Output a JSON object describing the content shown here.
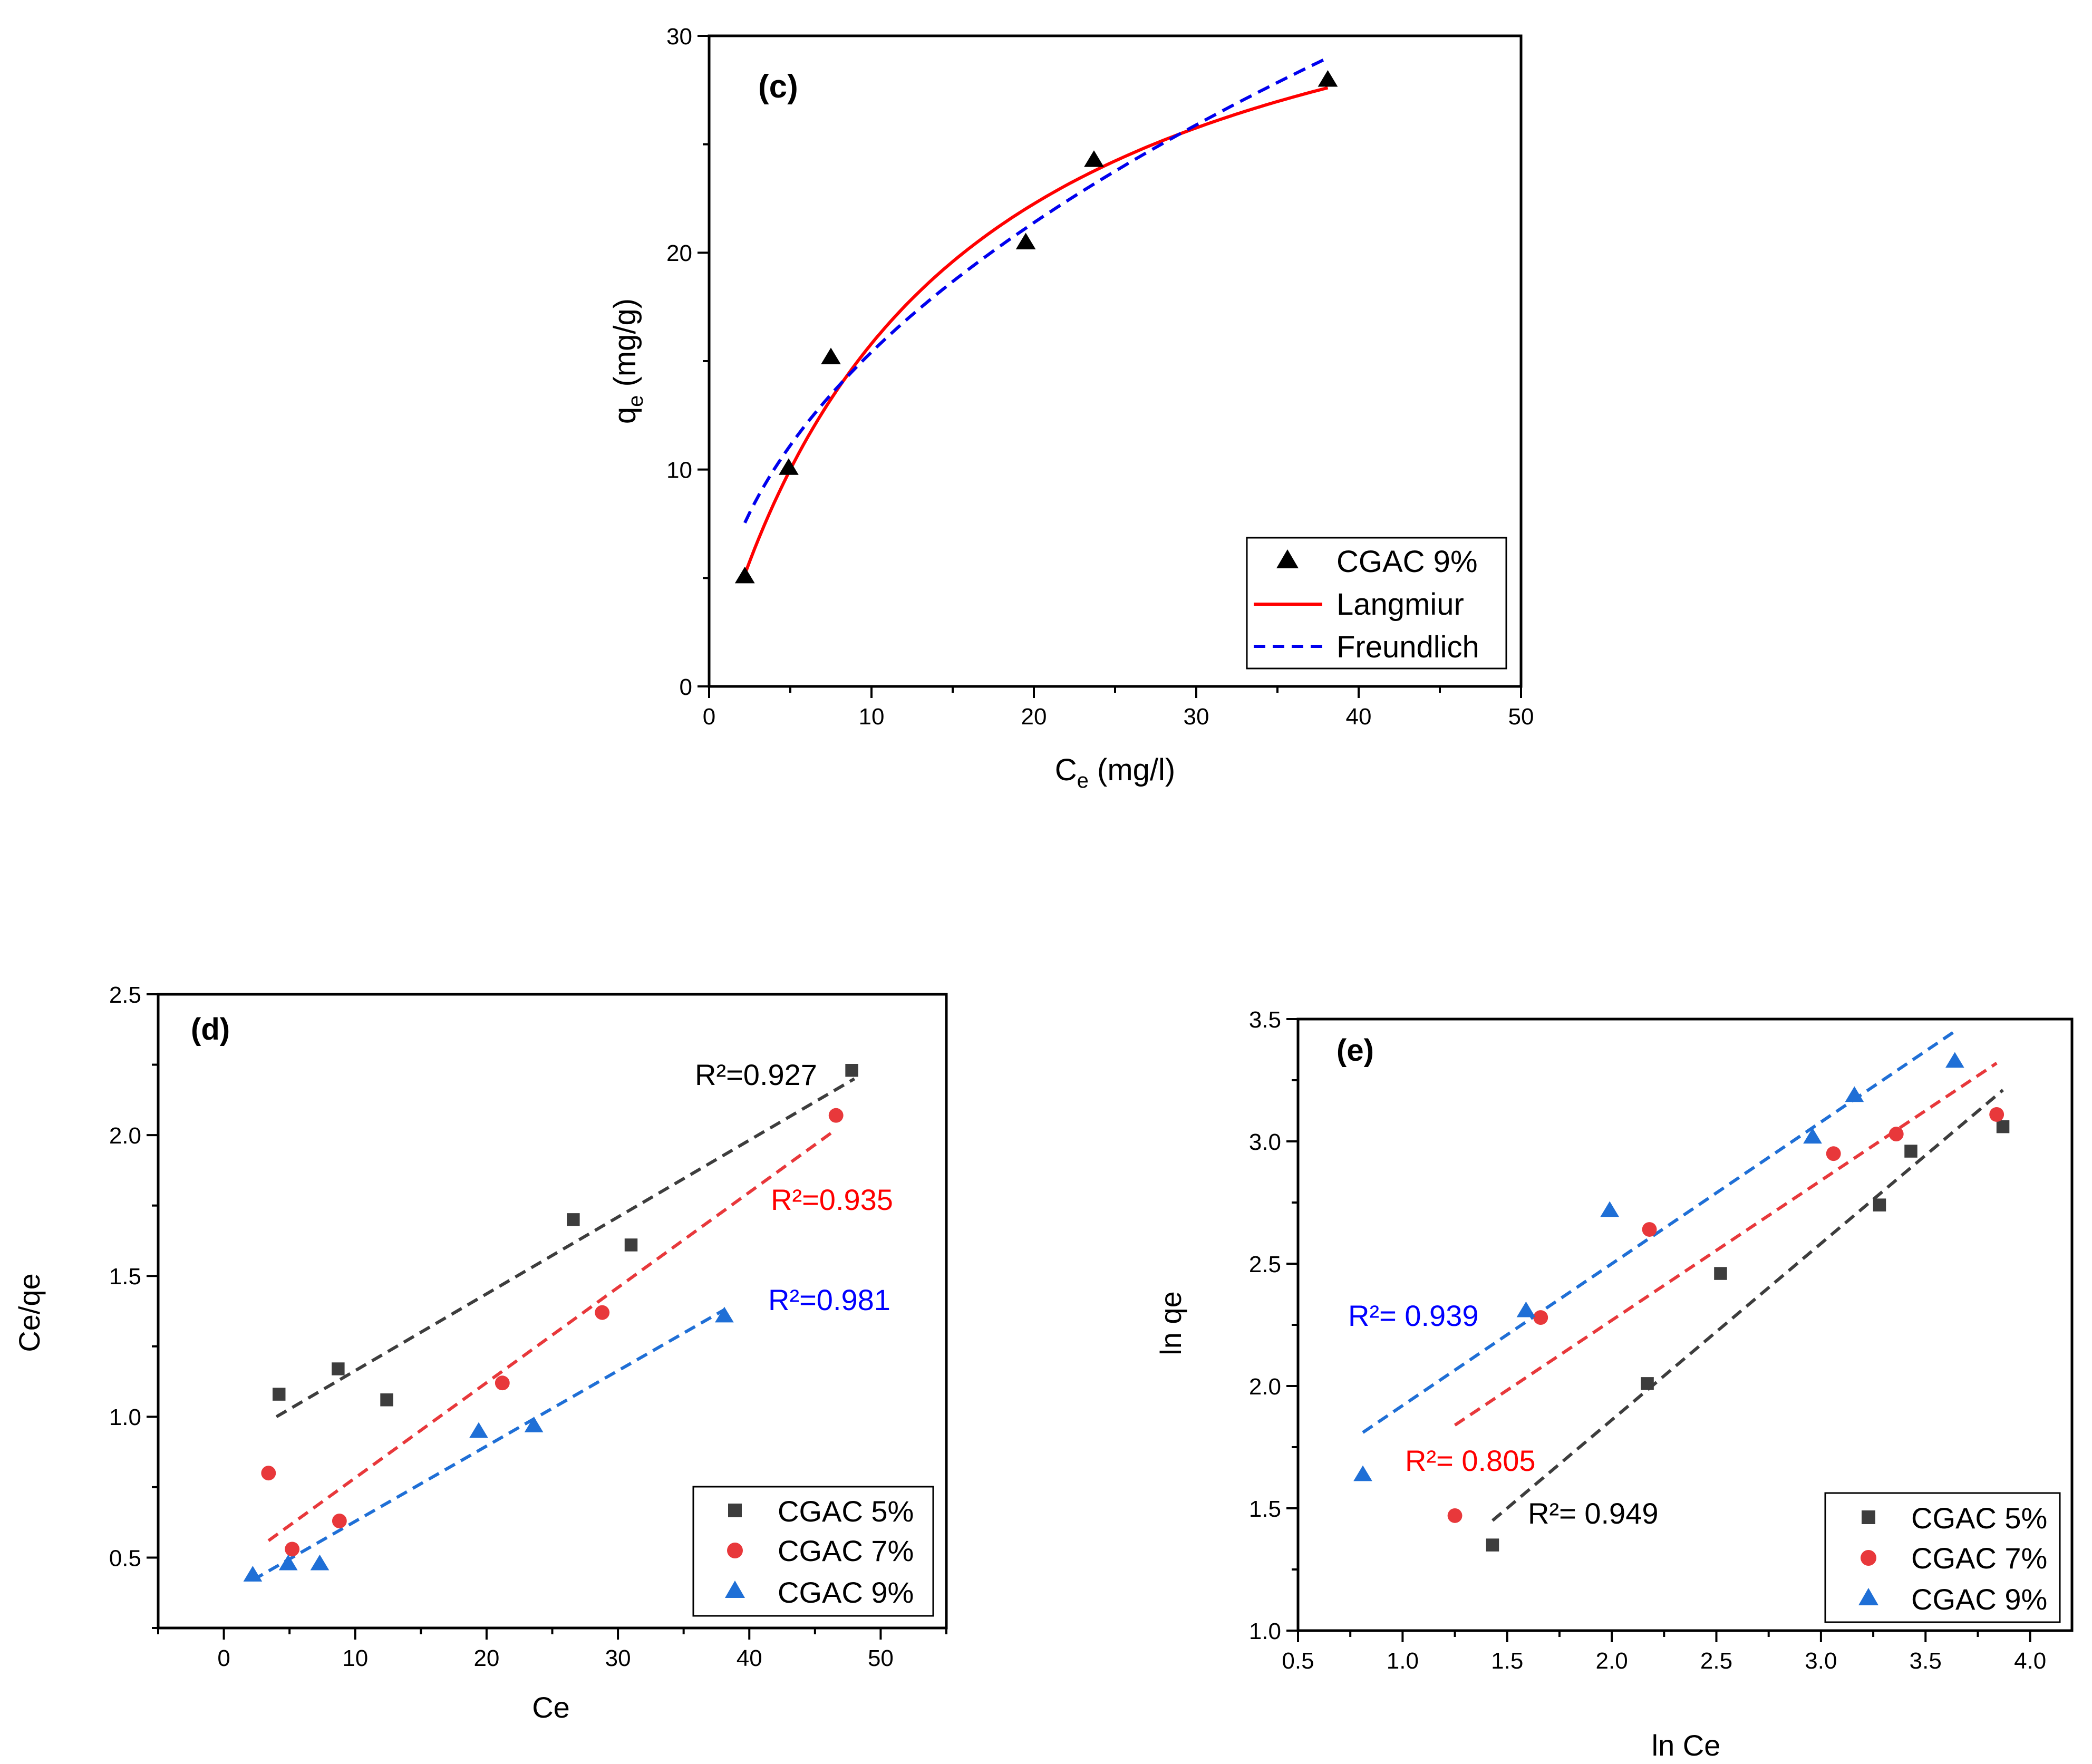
{
  "colors": {
    "black": "#000000",
    "gray": "#3d3d3d",
    "red": "#e8383b",
    "blue": "#1f6fd6",
    "langmuir": "#ff0000",
    "freundlich": "#0000ee",
    "r2_red": "#ff0000",
    "r2_blue": "#0000ff"
  },
  "chart_data": [
    {
      "type": "scatter",
      "panel_label": "(c)",
      "xlabel_main": "C",
      "xlabel_sub": "e",
      "xlabel_rest": " (mg/l)",
      "ylabel_main": "q",
      "ylabel_sub": "e",
      "ylabel_rest": " (mg/g)",
      "xlim": [
        0,
        50
      ],
      "ylim": [
        0,
        30
      ],
      "xticks": [
        "0",
        "10",
        "20",
        "30",
        "40",
        "50"
      ],
      "yticks": [
        "0",
        "10",
        "20",
        "30"
      ],
      "series": [
        {
          "name": "CGAC 9%",
          "marker": "triangle",
          "color": "#000000",
          "x": [
            2.2,
            4.9,
            7.5,
            19.5,
            23.7,
            38.1
          ],
          "y": [
            5.1,
            10.1,
            15.2,
            20.5,
            24.3,
            28.0
          ]
        }
      ],
      "fits": [
        {
          "name": "Langmiur",
          "model": "langmuir",
          "style": "solid",
          "color": "#ff0000",
          "qmax": 37.6,
          "KL": 0.0725,
          "x_range": [
            2.2,
            38.1
          ]
        },
        {
          "name": "Freundlich",
          "model": "freundlich",
          "style": "dashed",
          "color": "#0000ee",
          "KF": 5.2,
          "n_inv": 0.472,
          "x_range": [
            2.2,
            38.1
          ]
        }
      ],
      "legend": [
        "CGAC 9%",
        "Langmiur",
        "Freundlich"
      ],
      "legend_position": "bottom-right"
    },
    {
      "type": "scatter",
      "panel_label": "(d)",
      "xlabel": "Ce",
      "ylabel": "Ce/qe",
      "xlim": [
        -5,
        55
      ],
      "ylim": [
        0.25,
        2.5
      ],
      "xticks": [
        "0",
        "10",
        "20",
        "30",
        "40",
        "50"
      ],
      "yticks": [
        "0.5",
        "1.0",
        "1.5",
        "2.0",
        "2.5"
      ],
      "series": [
        {
          "name": "CGAC 5%",
          "marker": "square",
          "color": "#3d3d3d",
          "x": [
            4.2,
            8.7,
            12.4,
            26.6,
            31.0,
            47.8
          ],
          "y": [
            1.08,
            1.17,
            1.06,
            1.7,
            1.61,
            2.23
          ],
          "fit": {
            "x": [
              4.0,
              48.0
            ],
            "y": [
              1.0,
              2.2
            ]
          },
          "r2": "R²=0.927"
        },
        {
          "name": "CGAC 7%",
          "marker": "circle",
          "color": "#e8383b",
          "x": [
            3.4,
            5.2,
            8.8,
            21.2,
            28.8,
            46.6
          ],
          "y": [
            0.8,
            0.53,
            0.63,
            1.12,
            1.37,
            2.07
          ],
          "fit": {
            "x": [
              3.4,
              46.6
            ],
            "y": [
              0.56,
              2.02
            ]
          },
          "r2": "R²=0.935"
        },
        {
          "name": "CGAC 9%",
          "marker": "triangle",
          "color": "#1f6fd6",
          "x": [
            2.2,
            4.9,
            7.3,
            19.4,
            23.6,
            38.1
          ],
          "y": [
            0.44,
            0.48,
            0.48,
            0.95,
            0.97,
            1.36
          ],
          "fit": {
            "x": [
              2.2,
              38.1
            ],
            "y": [
              0.42,
              1.38
            ]
          },
          "r2": "R²=0.981"
        }
      ],
      "legend": [
        "CGAC 5%",
        "CGAC 7%",
        "CGAC 9%"
      ],
      "legend_position": "bottom-right"
    },
    {
      "type": "scatter",
      "panel_label": "(e)",
      "xlabel": "ln Ce",
      "ylabel": "ln qe",
      "xlim": [
        0.5,
        4.2
      ],
      "ylim": [
        1.0,
        3.5
      ],
      "xticks": [
        "0.5",
        "1.0",
        "1.5",
        "2.0",
        "2.5",
        "3.0",
        "3.5",
        "4.0"
      ],
      "yticks": [
        "1.0",
        "1.5",
        "2.0",
        "2.5",
        "3.0",
        "3.5"
      ],
      "series": [
        {
          "name": "CGAC 5%",
          "marker": "square",
          "color": "#3d3d3d",
          "x": [
            1.43,
            2.17,
            2.52,
            3.28,
            3.43,
            3.87
          ],
          "y": [
            1.35,
            2.01,
            2.46,
            2.74,
            2.96,
            3.06
          ],
          "fit": {
            "x": [
              1.43,
              3.87
            ],
            "y": [
              1.45,
              3.21
            ]
          },
          "r2": "R²= 0.949"
        },
        {
          "name": "CGAC 7%",
          "marker": "circle",
          "color": "#e8383b",
          "x": [
            1.25,
            1.66,
            2.18,
            3.06,
            3.36,
            3.84
          ],
          "y": [
            1.47,
            2.28,
            2.64,
            2.95,
            3.03,
            3.11
          ],
          "fit": {
            "x": [
              1.25,
              3.84
            ],
            "y": [
              1.84,
              3.32
            ]
          },
          "r2": "R²= 0.805"
        },
        {
          "name": "CGAC 9%",
          "marker": "triangle",
          "color": "#1f6fd6",
          "x": [
            0.81,
            1.59,
            1.99,
            2.96,
            3.16,
            3.64
          ],
          "y": [
            1.64,
            2.31,
            2.72,
            3.02,
            3.19,
            3.33
          ],
          "fit": {
            "x": [
              0.81,
              3.64
            ],
            "y": [
              1.81,
              3.45
            ]
          },
          "r2": "R²= 0.939"
        }
      ],
      "legend": [
        "CGAC 5%",
        "CGAC 7%",
        "CGAC 9%"
      ],
      "legend_position": "bottom-right"
    }
  ]
}
